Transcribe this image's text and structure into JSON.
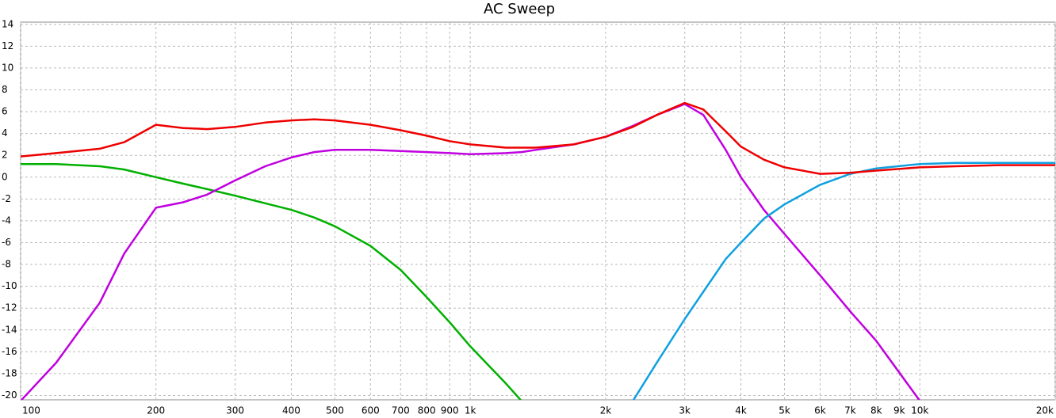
{
  "chart_data": {
    "type": "line",
    "title": "AC Sweep",
    "log_x": true,
    "grid": true,
    "x": [
      100,
      120,
      150,
      170,
      200,
      230,
      260,
      300,
      350,
      400,
      450,
      500,
      600,
      700,
      800,
      900,
      1000,
      1200,
      1300,
      1400,
      1700,
      2000,
      2300,
      2600,
      3000,
      3300,
      3700,
      4000,
      4500,
      5000,
      6000,
      7000,
      8000,
      10000,
      12000,
      15000,
      20000
    ],
    "series": [
      {
        "color": "#00b000",
        "values": [
          1.2,
          1.2,
          1.0,
          0.7,
          0.0,
          -0.6,
          -1.1,
          -1.7,
          -2.4,
          -3.0,
          -3.7,
          -4.5,
          -6.3,
          -8.5,
          -11,
          -13.3,
          -15.5,
          -18.9,
          -20.5,
          null,
          null,
          null,
          null,
          null,
          null,
          null,
          null,
          null,
          null,
          null,
          null,
          null,
          null,
          null,
          null,
          null,
          null
        ]
      },
      {
        "color": "#c000e0",
        "values": [
          -20.5,
          -17,
          -11.5,
          -7,
          -2.8,
          -2.3,
          -1.6,
          -0.3,
          1.0,
          1.8,
          2.3,
          2.5,
          2.5,
          2.4,
          2.3,
          2.2,
          2.1,
          2.2,
          2.3,
          2.5,
          3.0,
          3.7,
          4.7,
          5.7,
          6.7,
          5.7,
          2.5,
          0,
          -3,
          -5.2,
          -9,
          -12.3,
          -15,
          -20.5,
          null,
          null,
          null
        ]
      },
      {
        "color": "#10a0e0",
        "values": [
          null,
          null,
          null,
          null,
          null,
          null,
          null,
          null,
          null,
          null,
          null,
          null,
          null,
          null,
          null,
          null,
          null,
          null,
          null,
          null,
          null,
          null,
          -20.5,
          -17,
          -13,
          -10.5,
          -7.5,
          -6,
          -3.8,
          -2.5,
          -0.7,
          0.3,
          0.8,
          1.2,
          1.3,
          1.3,
          1.3
        ]
      },
      {
        "color": "#ee0000",
        "values": [
          1.9,
          2.2,
          2.6,
          3.2,
          4.8,
          4.5,
          4.4,
          4.6,
          5.0,
          5.2,
          5.3,
          5.2,
          4.8,
          4.3,
          3.8,
          3.3,
          3.0,
          2.7,
          2.7,
          2.7,
          3.0,
          3.7,
          4.6,
          5.7,
          6.8,
          6.2,
          4.2,
          2.8,
          1.6,
          0.9,
          0.3,
          0.4,
          0.6,
          0.9,
          1.0,
          1.1,
          1.1
        ]
      }
    ],
    "xlim": [
      100,
      20000
    ],
    "xticks": [
      100,
      200,
      300,
      400,
      500,
      600,
      700,
      800,
      900,
      {
        "value": 1000,
        "label": "1k"
      },
      {
        "value": 2000,
        "label": "2k"
      },
      {
        "value": 3000,
        "label": "3k"
      },
      {
        "value": 4000,
        "label": "4k"
      },
      {
        "value": 5000,
        "label": "5k"
      },
      {
        "value": 6000,
        "label": "6k"
      },
      {
        "value": 7000,
        "label": "7k"
      },
      {
        "value": 8000,
        "label": "8k"
      },
      {
        "value": 9000,
        "label": "9k"
      },
      {
        "value": 10000,
        "label": "10k"
      },
      {
        "value": 20000,
        "label": "20k"
      }
    ],
    "ylim": [
      -20.4,
      14.2
    ],
    "yticks": [
      14,
      12,
      10,
      8,
      6,
      4,
      2,
      0,
      -2,
      -4,
      -6,
      -8,
      -10,
      -12,
      -14,
      -16,
      -18,
      -20
    ]
  }
}
